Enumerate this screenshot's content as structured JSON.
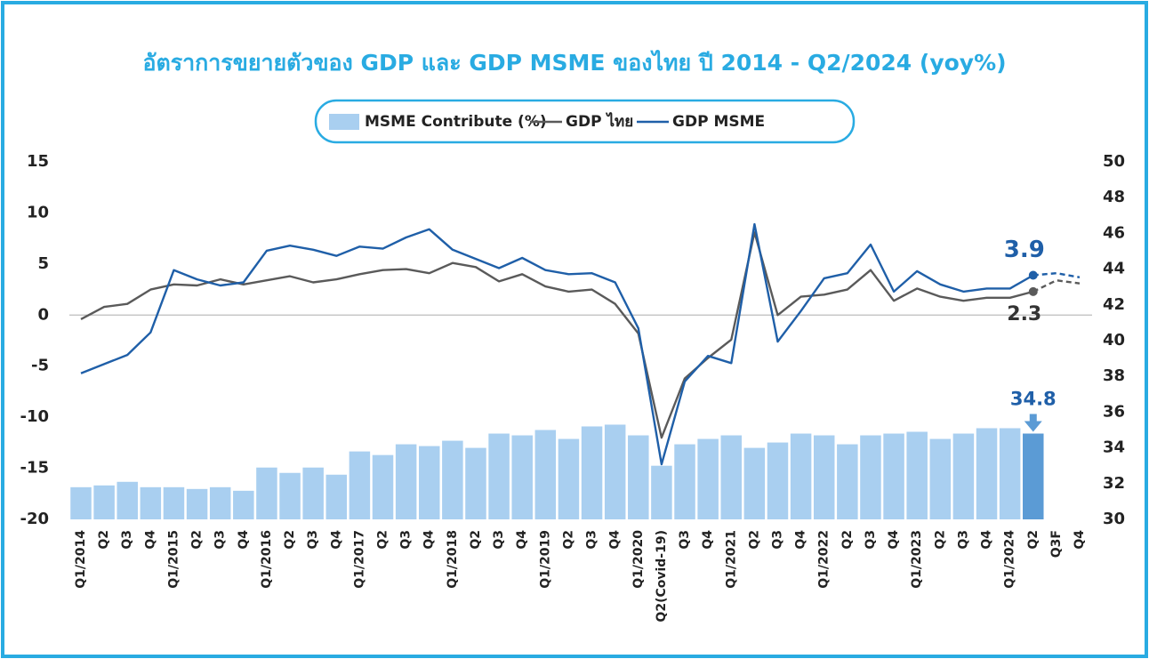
{
  "chart_data": {
    "type": "bar-line",
    "title": "อัตราการขยายตัวของ GDP และ GDP MSME ของไทย ปี 2014 - Q2/2024 (yoy%)",
    "categories": [
      "Q1/2014",
      "Q2",
      "Q3",
      "Q4",
      "Q1/2015",
      "Q2",
      "Q3",
      "Q4",
      "Q1/2016",
      "Q2",
      "Q3",
      "Q4",
      "Q1/2017",
      "Q2",
      "Q3",
      "Q4",
      "Q1/2018",
      "Q2",
      "Q3",
      "Q4",
      "Q1/2019",
      "Q2",
      "Q3",
      "Q4",
      "Q1/2020",
      "Q2(Covid-19)",
      "Q3",
      "Q4",
      "Q1/2021",
      "Q2",
      "Q3",
      "Q4",
      "Q1/2022",
      "Q2",
      "Q3",
      "Q4",
      "Q1/2023",
      "Q2",
      "Q3",
      "Q4",
      "Q1/2024",
      "Q2",
      "Q3F",
      "Q4"
    ],
    "forecast_start": 41,
    "series": [
      {
        "name": "MSME Contribute (%)",
        "type": "bar",
        "axis": "y2",
        "color": "#a9cff0",
        "highlight_color": "#5b9bd5",
        "label_points": [
          41
        ],
        "values": [
          31.8,
          31.9,
          32.1,
          31.8,
          31.8,
          31.7,
          31.8,
          31.6,
          32.9,
          32.6,
          32.9,
          32.5,
          33.8,
          33.6,
          34.2,
          34.1,
          34.4,
          34.0,
          34.8,
          34.7,
          35.0,
          34.5,
          35.2,
          35.3,
          34.7,
          33.0,
          34.2,
          34.5,
          34.7,
          34.0,
          34.3,
          34.8,
          34.7,
          34.2,
          34.7,
          34.8,
          34.9,
          34.5,
          34.8,
          35.1,
          35.1,
          34.8,
          null,
          null
        ]
      },
      {
        "name": "GDP ไทย",
        "type": "line",
        "color": "#5a5a5a",
        "label_points": [
          41
        ],
        "values": [
          -0.4,
          0.8,
          1.1,
          2.5,
          3.0,
          2.9,
          3.5,
          3.0,
          3.4,
          3.8,
          3.2,
          3.5,
          4.0,
          4.4,
          4.5,
          4.1,
          5.1,
          4.7,
          3.3,
          4.0,
          2.8,
          2.3,
          2.5,
          1.1,
          -1.8,
          -12.0,
          -6.2,
          -4.2,
          -2.4,
          8.1,
          0.0,
          1.8,
          2.0,
          2.5,
          4.4,
          1.4,
          2.6,
          1.8,
          1.4,
          1.7,
          1.7,
          2.3,
          3.4,
          3.1
        ]
      },
      {
        "name": "GDP MSME",
        "type": "line",
        "color": "#1f5fa8",
        "label_points": [
          41
        ],
        "values": [
          -5.7,
          -4.8,
          -3.9,
          -1.7,
          4.4,
          3.5,
          2.9,
          3.2,
          6.3,
          6.8,
          6.4,
          5.8,
          6.7,
          6.5,
          7.6,
          8.4,
          6.4,
          5.5,
          4.6,
          5.6,
          4.4,
          4.0,
          4.1,
          3.2,
          -1.3,
          -14.6,
          -6.5,
          -4.0,
          -4.7,
          8.9,
          -2.6,
          0.4,
          3.6,
          4.1,
          6.9,
          2.3,
          4.3,
          3.0,
          2.3,
          2.6,
          2.6,
          3.9,
          4.1,
          3.7
        ]
      }
    ],
    "ylim": [
      -20,
      15
    ],
    "yticks": [
      -20,
      -15,
      -10,
      -5,
      0,
      5,
      10,
      15
    ],
    "y2lim": [
      30,
      50
    ],
    "y2ticks": [
      30,
      32,
      34,
      36,
      38,
      40,
      42,
      44,
      46,
      48,
      50
    ]
  }
}
